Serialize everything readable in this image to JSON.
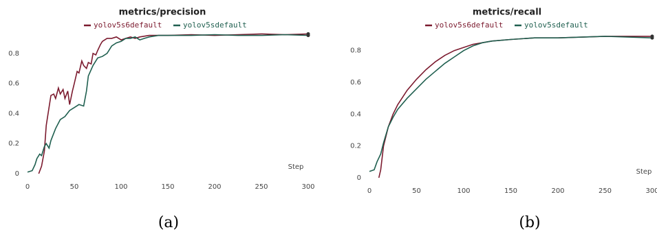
{
  "chart_data": [
    {
      "type": "line",
      "title": "metrics/precision",
      "xlabel": "Step",
      "caption": "(a)",
      "xlim": [
        0,
        300
      ],
      "xticks": [
        0,
        50,
        100,
        150,
        200,
        250,
        300
      ],
      "ylim": [
        0,
        0.95
      ],
      "yticks": [
        0,
        0.2,
        0.4,
        0.6,
        0.8
      ],
      "series": [
        {
          "name": "yolov5s6default",
          "color": "#7b1a2e",
          "x": [
            12,
            15,
            18,
            20,
            22,
            25,
            28,
            30,
            33,
            35,
            38,
            40,
            43,
            45,
            48,
            50,
            53,
            55,
            58,
            60,
            63,
            65,
            68,
            70,
            73,
            75,
            78,
            80,
            85,
            90,
            95,
            100,
            105,
            110,
            115,
            120,
            130,
            140,
            150,
            175,
            200,
            225,
            250,
            275,
            300
          ],
          "values": [
            0,
            0.05,
            0.15,
            0.32,
            0.4,
            0.52,
            0.53,
            0.5,
            0.57,
            0.53,
            0.56,
            0.5,
            0.55,
            0.46,
            0.55,
            0.6,
            0.68,
            0.67,
            0.75,
            0.72,
            0.7,
            0.74,
            0.73,
            0.8,
            0.79,
            0.82,
            0.86,
            0.88,
            0.9,
            0.9,
            0.91,
            0.89,
            0.9,
            0.91,
            0.9,
            0.91,
            0.92,
            0.92,
            0.92,
            0.925,
            0.92,
            0.925,
            0.93,
            0.925,
            0.93
          ]
        },
        {
          "name": "yolov5sdefault",
          "color": "#1f5f4f",
          "x": [
            0,
            5,
            8,
            10,
            13,
            15,
            18,
            20,
            23,
            25,
            30,
            35,
            40,
            45,
            50,
            55,
            60,
            63,
            65,
            70,
            75,
            80,
            85,
            90,
            95,
            100,
            105,
            110,
            115,
            120,
            125,
            130,
            140,
            150,
            175,
            200,
            225,
            250,
            275,
            300
          ],
          "values": [
            0.01,
            0.02,
            0.06,
            0.1,
            0.13,
            0.12,
            0.18,
            0.2,
            0.17,
            0.22,
            0.3,
            0.36,
            0.38,
            0.42,
            0.44,
            0.46,
            0.45,
            0.55,
            0.65,
            0.72,
            0.77,
            0.78,
            0.8,
            0.85,
            0.87,
            0.88,
            0.9,
            0.9,
            0.91,
            0.89,
            0.9,
            0.91,
            0.92,
            0.92,
            0.92,
            0.925,
            0.92,
            0.92,
            0.925,
            0.92
          ]
        }
      ]
    },
    {
      "type": "line",
      "title": "metrics/recall",
      "xlabel": "Step",
      "caption": "(b)",
      "xlim": [
        0,
        300
      ],
      "xticks": [
        0,
        50,
        100,
        150,
        200,
        250,
        300
      ],
      "ylim": [
        0,
        0.95
      ],
      "yticks": [
        0,
        0.2,
        0.4,
        0.6,
        0.8
      ],
      "series": [
        {
          "name": "yolov5s6default",
          "color": "#7b1a2e",
          "x": [
            10,
            12,
            15,
            20,
            25,
            30,
            40,
            50,
            60,
            70,
            80,
            90,
            100,
            110,
            120,
            130,
            150,
            175,
            200,
            250,
            300
          ],
          "values": [
            0,
            0.05,
            0.2,
            0.32,
            0.4,
            0.46,
            0.55,
            0.62,
            0.68,
            0.73,
            0.77,
            0.8,
            0.82,
            0.84,
            0.85,
            0.86,
            0.87,
            0.88,
            0.88,
            0.89,
            0.89
          ]
        },
        {
          "name": "yolov5sdefault",
          "color": "#1f5f4f",
          "x": [
            0,
            5,
            8,
            12,
            15,
            20,
            25,
            30,
            40,
            50,
            60,
            70,
            80,
            90,
            100,
            110,
            120,
            130,
            150,
            175,
            200,
            250,
            300
          ],
          "values": [
            0.04,
            0.05,
            0.1,
            0.15,
            0.22,
            0.32,
            0.38,
            0.43,
            0.5,
            0.56,
            0.62,
            0.67,
            0.72,
            0.76,
            0.8,
            0.83,
            0.85,
            0.86,
            0.87,
            0.88,
            0.88,
            0.89,
            0.88
          ]
        }
      ]
    }
  ]
}
